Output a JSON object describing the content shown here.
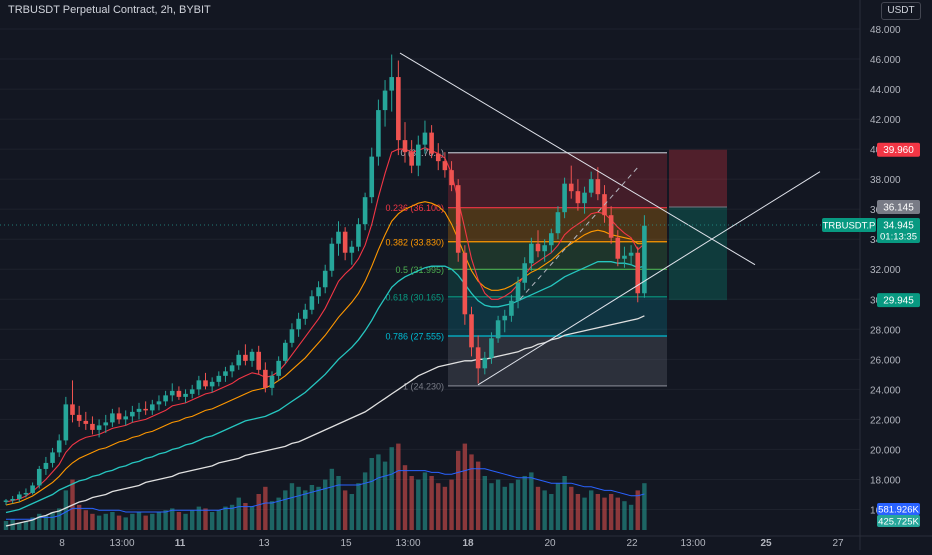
{
  "header": {
    "symbol_title": "TRBUSDT Perpetual Contract, 2h, BYBIT",
    "currency": "USDT"
  },
  "chart_data": {
    "type": "candlestick",
    "ylim": [
      14.3,
      49.0
    ],
    "y_ticks": [
      "48.000",
      "46.000",
      "44.000",
      "42.000",
      "40.000",
      "38.000",
      "36.000",
      "34.000",
      "32.000",
      "30.000",
      "28.000",
      "26.000",
      "24.000",
      "22.000",
      "20.000",
      "18.000",
      "16.000"
    ],
    "x_ticks": [
      "8",
      "13:00",
      "11",
      "13",
      "15",
      "13:00",
      "18",
      "20",
      "22",
      "13:00",
      "25",
      "27"
    ],
    "series_names": [
      "TRBUSDT.P"
    ],
    "candles": [
      [
        16.5,
        16.7,
        16.3,
        16.6
      ],
      [
        16.6,
        16.9,
        16.4,
        16.7
      ],
      [
        16.7,
        17.2,
        16.5,
        17.0
      ],
      [
        17.0,
        17.4,
        16.8,
        17.1
      ],
      [
        17.1,
        17.8,
        17.0,
        17.6
      ],
      [
        17.6,
        18.9,
        17.4,
        18.7
      ],
      [
        18.7,
        19.5,
        18.3,
        19.1
      ],
      [
        19.1,
        20.1,
        18.8,
        19.8
      ],
      [
        19.8,
        21.0,
        19.5,
        20.6
      ],
      [
        20.6,
        23.5,
        20.3,
        23.0
      ],
      [
        23.0,
        24.6,
        21.8,
        22.3
      ],
      [
        22.3,
        22.9,
        21.5,
        21.9
      ],
      [
        21.9,
        22.5,
        21.3,
        21.7
      ],
      [
        21.7,
        22.2,
        21.0,
        21.3
      ],
      [
        21.3,
        22.0,
        20.8,
        21.6
      ],
      [
        21.6,
        22.3,
        21.1,
        21.8
      ],
      [
        21.8,
        22.7,
        21.5,
        22.4
      ],
      [
        22.4,
        22.8,
        21.7,
        22.0
      ],
      [
        22.0,
        22.6,
        21.6,
        22.2
      ],
      [
        22.2,
        22.9,
        21.8,
        22.5
      ],
      [
        22.5,
        23.1,
        22.0,
        22.7
      ],
      [
        22.7,
        23.2,
        22.3,
        22.6
      ],
      [
        22.6,
        23.3,
        22.3,
        23.0
      ],
      [
        23.0,
        23.6,
        22.6,
        23.2
      ],
      [
        23.2,
        23.9,
        22.9,
        23.6
      ],
      [
        23.6,
        24.4,
        23.2,
        23.9
      ],
      [
        23.9,
        24.2,
        23.3,
        23.5
      ],
      [
        23.5,
        24.0,
        23.1,
        23.7
      ],
      [
        23.7,
        24.3,
        23.4,
        24.0
      ],
      [
        24.0,
        24.9,
        23.6,
        24.6
      ],
      [
        24.6,
        25.1,
        24.0,
        24.2
      ],
      [
        24.2,
        24.8,
        23.8,
        24.5
      ],
      [
        24.5,
        25.2,
        24.2,
        24.9
      ],
      [
        24.9,
        25.5,
        24.5,
        25.2
      ],
      [
        25.2,
        25.8,
        24.8,
        25.6
      ],
      [
        25.6,
        26.6,
        25.3,
        26.3
      ],
      [
        26.3,
        27.0,
        25.6,
        25.9
      ],
      [
        25.9,
        26.7,
        25.5,
        26.5
      ],
      [
        26.5,
        26.9,
        25.0,
        25.3
      ],
      [
        25.3,
        25.8,
        23.8,
        24.1
      ],
      [
        24.1,
        25.2,
        23.6,
        24.9
      ],
      [
        24.9,
        26.2,
        24.6,
        25.9
      ],
      [
        25.9,
        27.3,
        25.7,
        27.1
      ],
      [
        27.1,
        28.4,
        26.8,
        28.0
      ],
      [
        28.0,
        29.1,
        27.5,
        28.7
      ],
      [
        28.7,
        29.7,
        28.3,
        29.3
      ],
      [
        29.3,
        30.6,
        29.0,
        30.2
      ],
      [
        30.2,
        31.2,
        29.7,
        30.8
      ],
      [
        30.8,
        32.3,
        30.4,
        31.9
      ],
      [
        31.9,
        34.1,
        31.5,
        33.7
      ],
      [
        33.7,
        35.2,
        32.9,
        34.5
      ],
      [
        34.5,
        34.8,
        32.6,
        33.1
      ],
      [
        33.1,
        33.9,
        32.3,
        33.5
      ],
      [
        33.5,
        35.4,
        33.2,
        35.0
      ],
      [
        35.0,
        37.1,
        34.6,
        36.8
      ],
      [
        36.8,
        40.1,
        36.4,
        39.5
      ],
      [
        39.5,
        43.3,
        38.9,
        42.6
      ],
      [
        42.6,
        44.6,
        41.5,
        43.9
      ],
      [
        43.9,
        46.3,
        42.5,
        44.8
      ],
      [
        44.8,
        45.9,
        39.6,
        40.6
      ],
      [
        40.6,
        41.8,
        39.1,
        39.8
      ],
      [
        39.8,
        40.6,
        38.4,
        38.9
      ],
      [
        38.9,
        40.9,
        38.2,
        40.3
      ],
      [
        40.3,
        41.9,
        39.7,
        41.1
      ],
      [
        41.1,
        41.6,
        39.4,
        39.7
      ],
      [
        39.7,
        40.4,
        38.6,
        39.2
      ],
      [
        39.2,
        39.8,
        38.1,
        38.6
      ],
      [
        38.6,
        39.2,
        37.2,
        37.6
      ],
      [
        37.6,
        38.0,
        32.5,
        33.1
      ],
      [
        33.1,
        33.6,
        28.3,
        29.0
      ],
      [
        29.0,
        29.5,
        26.2,
        26.8
      ],
      [
        26.8,
        27.6,
        24.4,
        25.4
      ],
      [
        25.4,
        26.5,
        25.0,
        26.1
      ],
      [
        26.1,
        27.8,
        25.7,
        27.4
      ],
      [
        27.4,
        28.9,
        27.1,
        28.6
      ],
      [
        28.6,
        29.3,
        27.8,
        28.9
      ],
      [
        28.9,
        30.3,
        28.5,
        29.9
      ],
      [
        29.9,
        31.5,
        29.4,
        31.1
      ],
      [
        31.1,
        32.8,
        30.6,
        32.4
      ],
      [
        32.4,
        34.1,
        31.9,
        33.7
      ],
      [
        33.7,
        34.6,
        32.8,
        33.2
      ],
      [
        33.2,
        34.0,
        32.5,
        33.6
      ],
      [
        33.6,
        34.7,
        33.1,
        34.4
      ],
      [
        34.4,
        36.2,
        34.0,
        35.8
      ],
      [
        35.8,
        38.1,
        35.4,
        37.7
      ],
      [
        37.7,
        38.9,
        36.7,
        37.2
      ],
      [
        37.2,
        38.0,
        35.9,
        36.4
      ],
      [
        36.4,
        37.5,
        35.7,
        37.1
      ],
      [
        37.1,
        38.5,
        36.8,
        38.0
      ],
      [
        38.0,
        38.8,
        36.6,
        37.0
      ],
      [
        37.0,
        37.6,
        35.1,
        35.6
      ],
      [
        35.6,
        36.2,
        33.7,
        34.1
      ],
      [
        34.1,
        34.6,
        32.2,
        32.7
      ],
      [
        32.7,
        33.5,
        32.1,
        32.9
      ],
      [
        32.9,
        33.6,
        32.3,
        33.1
      ],
      [
        33.1,
        33.5,
        29.8,
        30.4
      ],
      [
        30.4,
        35.6,
        30.1,
        34.9
      ]
    ],
    "sma_white": [
      14.9,
      15.0,
      15.1,
      15.2,
      15.3,
      15.5,
      15.6,
      15.8,
      15.9,
      16.1,
      16.3,
      16.5,
      16.6,
      16.8,
      16.9,
      17.0,
      17.2,
      17.3,
      17.4,
      17.5,
      17.6,
      17.8,
      17.9,
      18.0,
      18.1,
      18.2,
      18.4,
      18.5,
      18.6,
      18.7,
      18.8,
      18.9,
      19.1,
      19.2,
      19.3,
      19.4,
      19.6,
      19.7,
      19.8,
      19.9,
      20.0,
      20.1,
      20.2,
      20.4,
      20.5,
      20.7,
      20.9,
      21.1,
      21.3,
      21.5,
      21.7,
      21.9,
      22.1,
      22.3,
      22.5,
      22.8,
      23.1,
      23.4,
      23.7,
      24.0,
      24.3,
      24.6,
      24.9,
      25.1,
      25.3,
      25.5,
      25.6,
      25.7,
      25.8,
      25.9,
      25.9,
      26.0,
      26.0,
      26.1,
      26.2,
      26.3,
      26.4,
      26.5,
      26.7,
      26.8,
      27.0,
      27.1,
      27.3,
      27.4,
      27.6,
      27.7,
      27.8,
      27.9,
      28.0,
      28.1,
      28.2,
      28.3,
      28.4,
      28.5,
      28.6,
      28.7,
      28.9
    ],
    "ema_teal": [
      15.8,
      15.9,
      16.0,
      16.2,
      16.4,
      16.6,
      16.8,
      17.0,
      17.3,
      17.5,
      17.7,
      17.9,
      18.0,
      18.2,
      18.3,
      18.5,
      18.6,
      18.8,
      18.9,
      19.1,
      19.2,
      19.4,
      19.5,
      19.7,
      19.8,
      20.0,
      20.1,
      20.3,
      20.4,
      20.6,
      20.8,
      20.9,
      21.1,
      21.3,
      21.5,
      21.7,
      21.9,
      22.0,
      22.1,
      22.2,
      22.4,
      22.6,
      22.9,
      23.2,
      23.5,
      23.8,
      24.2,
      24.6,
      25.0,
      25.5,
      26.0,
      26.4,
      26.8,
      27.3,
      27.9,
      28.6,
      29.4,
      30.1,
      30.8,
      31.2,
      31.5,
      31.7,
      31.9,
      32.1,
      32.2,
      32.2,
      32.2,
      32.0,
      31.6,
      31.0,
      30.4,
      29.9,
      29.6,
      29.5,
      29.5,
      29.6,
      29.7,
      29.9,
      30.1,
      30.3,
      30.5,
      30.7,
      30.9,
      31.2,
      31.5,
      31.7,
      31.9,
      32.1,
      32.3,
      32.5,
      32.5,
      32.5,
      32.4,
      32.4,
      32.3,
      32.1,
      32.2
    ],
    "ema_orange": [
      16.3,
      16.4,
      16.5,
      16.7,
      16.9,
      17.2,
      17.5,
      17.8,
      18.2,
      18.7,
      19.1,
      19.4,
      19.6,
      19.8,
      20.0,
      20.1,
      20.3,
      20.5,
      20.6,
      20.8,
      20.9,
      21.1,
      21.2,
      21.4,
      21.6,
      21.8,
      21.9,
      22.1,
      22.2,
      22.4,
      22.6,
      22.7,
      22.9,
      23.1,
      23.3,
      23.5,
      23.7,
      23.9,
      24.0,
      24.1,
      24.3,
      24.6,
      24.9,
      25.3,
      25.7,
      26.1,
      26.6,
      27.1,
      27.6,
      28.2,
      28.8,
      29.3,
      29.8,
      30.4,
      31.2,
      32.2,
      33.3,
      34.3,
      35.2,
      35.7,
      36.0,
      36.2,
      36.4,
      36.5,
      36.4,
      36.2,
      35.8,
      35.0,
      34.0,
      32.9,
      31.9,
      31.2,
      30.8,
      30.6,
      30.6,
      30.7,
      30.9,
      31.2,
      31.5,
      31.8,
      32.0,
      32.3,
      32.6,
      33.0,
      33.4,
      33.7,
      34.0,
      34.3,
      34.5,
      34.6,
      34.5,
      34.3,
      34.2,
      34.1,
      34.0,
      33.7,
      33.7
    ],
    "ema_red": [
      16.5,
      16.6,
      16.7,
      16.9,
      17.2,
      17.6,
      18.0,
      18.5,
      19.0,
      19.8,
      20.3,
      20.6,
      20.8,
      20.9,
      21.0,
      21.2,
      21.4,
      21.5,
      21.6,
      21.8,
      21.9,
      22.0,
      22.2,
      22.4,
      22.6,
      22.9,
      23.0,
      23.1,
      23.3,
      23.5,
      23.7,
      23.8,
      24.0,
      24.2,
      24.4,
      24.7,
      24.9,
      25.1,
      25.0,
      24.8,
      24.9,
      25.2,
      25.7,
      26.3,
      26.9,
      27.5,
      28.1,
      28.7,
      29.4,
      30.3,
      31.2,
      31.7,
      32.1,
      32.7,
      33.6,
      35.0,
      36.8,
      38.4,
      39.8,
      40.0,
      40.0,
      39.8,
      39.9,
      40.1,
      39.9,
      39.7,
      39.4,
      38.4,
      36.6,
      34.7,
      32.7,
      31.3,
      30.4,
      30.0,
      30.0,
      30.2,
      30.5,
      31.0,
      31.6,
      32.2,
      32.5,
      32.8,
      33.1,
      33.6,
      34.3,
      34.7,
      35.0,
      35.3,
      35.7,
      35.8,
      35.7,
      35.3,
      34.8,
      34.4,
      34.1,
      33.3,
      33.7
    ],
    "volume": [
      5,
      6,
      4,
      5,
      7,
      9,
      8,
      10,
      12,
      22,
      28,
      14,
      11,
      9,
      8,
      9,
      10,
      8,
      7,
      9,
      10,
      8,
      9,
      10,
      11,
      12,
      10,
      9,
      11,
      13,
      12,
      10,
      11,
      13,
      14,
      18,
      15,
      13,
      20,
      24,
      16,
      18,
      22,
      26,
      24,
      22,
      25,
      24,
      28,
      34,
      30,
      22,
      20,
      26,
      32,
      40,
      42,
      38,
      46,
      48,
      36,
      30,
      28,
      32,
      30,
      26,
      24,
      28,
      44,
      48,
      42,
      38,
      30,
      26,
      28,
      24,
      26,
      28,
      30,
      32,
      24,
      22,
      20,
      26,
      30,
      24,
      20,
      18,
      22,
      20,
      18,
      20,
      18,
      16,
      14,
      22,
      26
    ],
    "volume_ma": [
      6,
      6,
      6,
      6,
      6,
      7,
      7,
      7,
      8,
      10,
      12,
      12,
      12,
      12,
      11,
      11,
      11,
      11,
      10,
      10,
      10,
      10,
      10,
      10,
      10,
      11,
      11,
      11,
      11,
      11,
      11,
      11,
      11,
      12,
      12,
      13,
      13,
      13,
      14,
      15,
      15,
      16,
      17,
      18,
      19,
      20,
      21,
      22,
      23,
      24,
      25,
      25,
      25,
      25,
      26,
      27,
      29,
      30,
      31,
      33,
      33,
      33,
      33,
      33,
      32,
      32,
      31,
      31,
      32,
      33,
      34,
      34,
      34,
      33,
      32,
      31,
      30,
      29,
      29,
      29,
      28,
      27,
      26,
      26,
      26,
      26,
      25,
      24,
      24,
      23,
      22,
      22,
      21,
      20,
      19,
      19,
      20
    ],
    "fib_levels": [
      {
        "ratio": 0,
        "price": 39.76,
        "label": "0 (39.76...)",
        "color": "#b2b5be"
      },
      {
        "ratio": 0.236,
        "price": 36.1,
        "label": "0.236 (36.100)",
        "color": "#f23645"
      },
      {
        "ratio": 0.382,
        "price": 33.83,
        "label": "0.382 (33.830)",
        "color": "#ff9800"
      },
      {
        "ratio": 0.5,
        "price": 31.995,
        "label": "0.5 (31.995)",
        "color": "#4caf50"
      },
      {
        "ratio": 0.618,
        "price": 30.165,
        "label": "0.618 (30.165)",
        "color": "#089981"
      },
      {
        "ratio": 0.786,
        "price": 27.555,
        "label": "0.786 (27.555)",
        "color": "#00bcd4"
      },
      {
        "ratio": 1,
        "price": 24.23,
        "label": "1 (24.230)",
        "color": "#787b86"
      }
    ],
    "position_tool": {
      "target": 39.96,
      "entry": 36.145,
      "stop": 29.945
    },
    "trendlines": {
      "descending": {
        "start": [
          400,
          46.4
        ],
        "end": [
          755,
          32.3
        ]
      },
      "ascending": {
        "start": [
          478,
          24.3
        ],
        "end": [
          820,
          38.5
        ]
      },
      "dashed": {
        "start": [
          520,
          30.0
        ],
        "end": [
          638,
          38.8
        ]
      }
    },
    "price_labels": {
      "target": "39.960",
      "entry": "36.145",
      "stop": "29.945",
      "last_symbol": "TRBUSDT.P",
      "last_price": "34.945",
      "countdown": "01:13:35",
      "volume_a": "581.926K",
      "volume_b": "425.725K"
    },
    "colors": {
      "background": "#131722",
      "up": "#26a69a",
      "down": "#ef5350",
      "axis_text": "#b2b5be",
      "grid": "#1e222d",
      "sma_white": "#e0e0e0",
      "ema_teal": "#26c6c0",
      "ema_orange": "#ff9800",
      "ema_red": "#f23645",
      "volume_ma": "#2962ff"
    }
  }
}
